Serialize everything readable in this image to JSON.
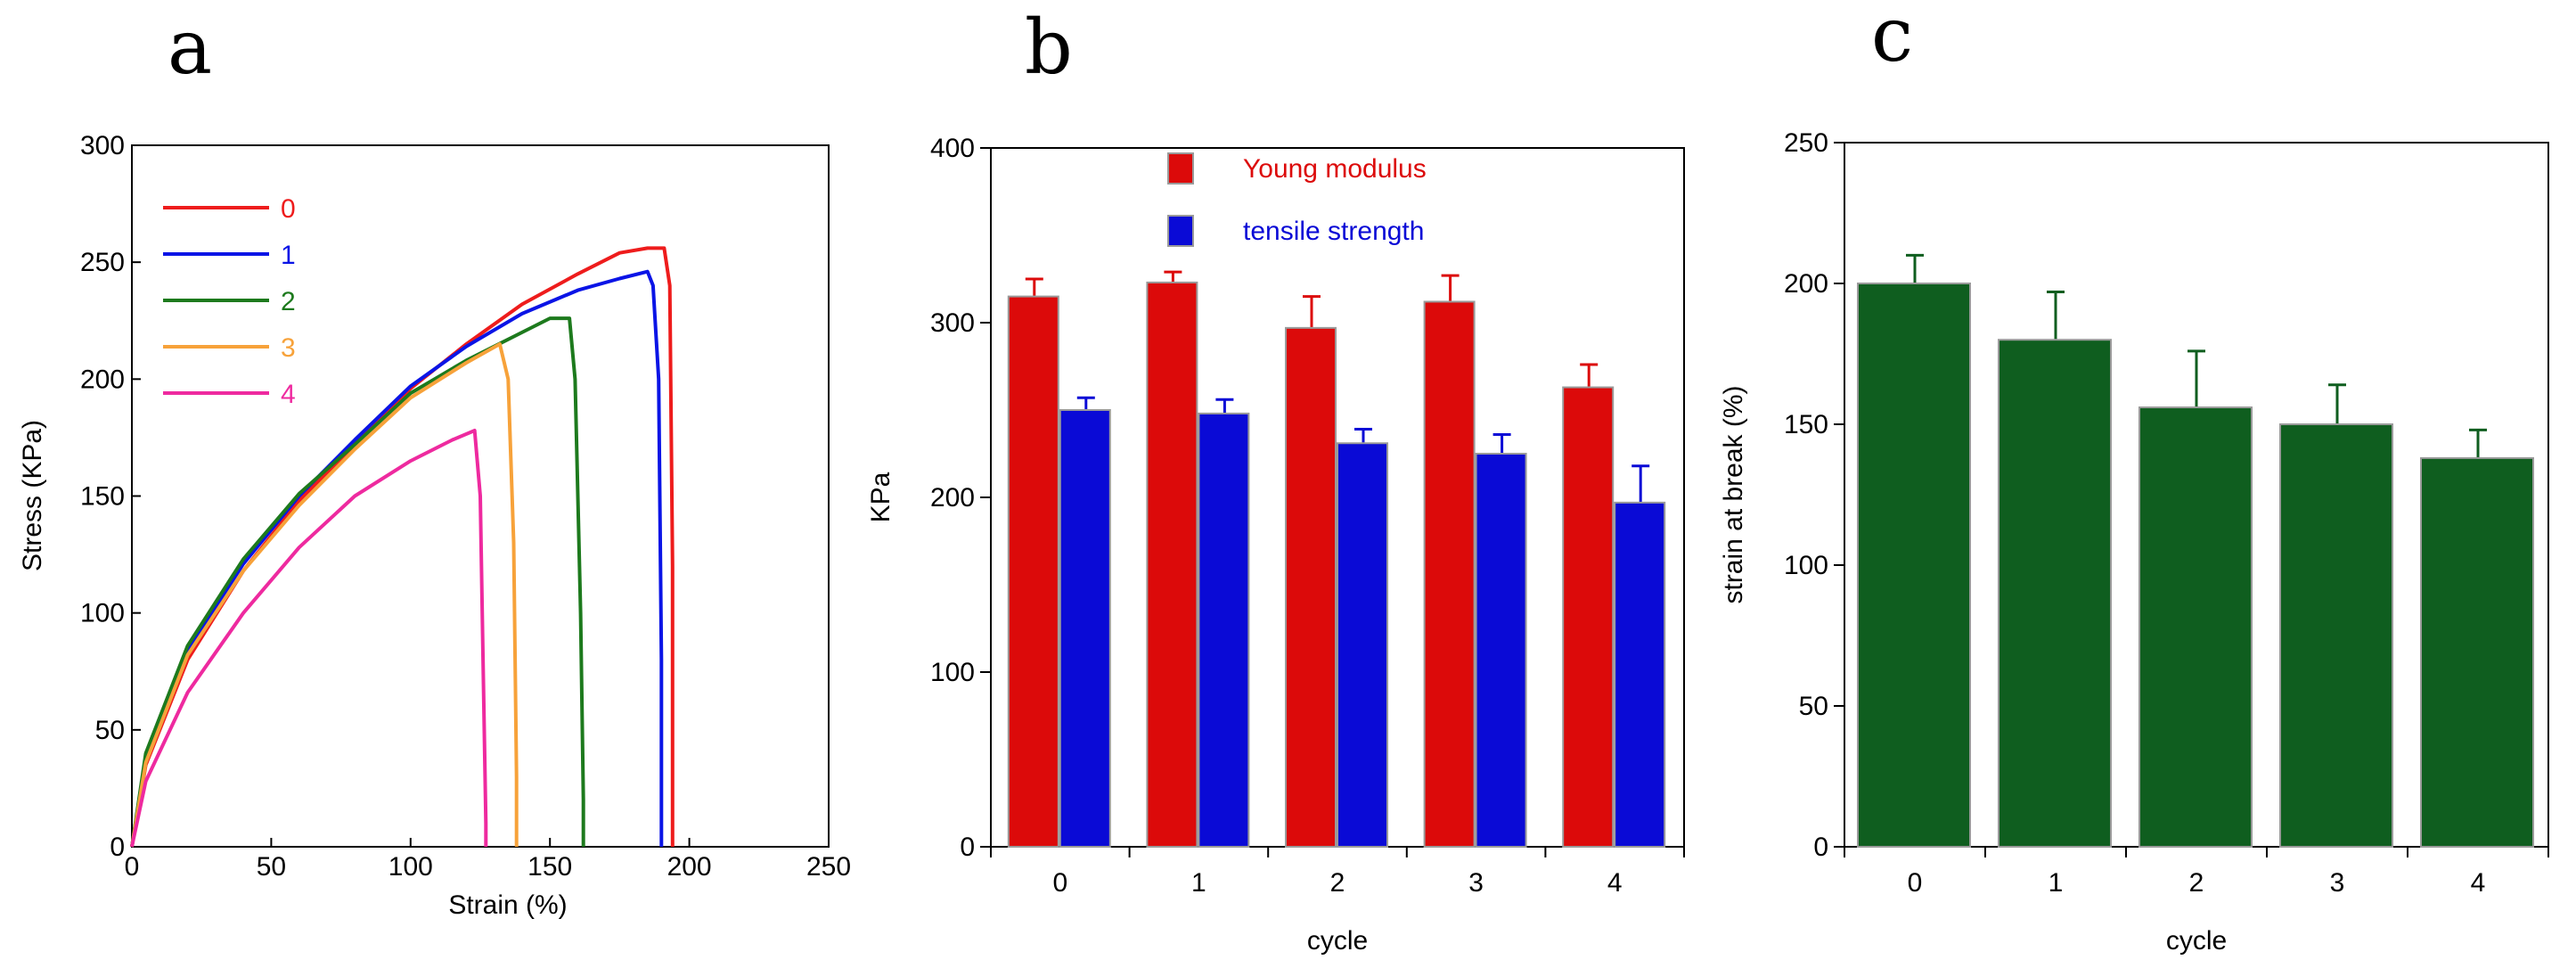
{
  "panels": [
    "a",
    "b",
    "c"
  ],
  "chart_data": [
    {
      "type": "line",
      "xlabel": "Strain (%)",
      "ylabel": "Stress (KPa)",
      "xlim": [
        0,
        250
      ],
      "ylim": [
        0,
        300
      ],
      "xticks": [
        "0",
        "50",
        "100",
        "150",
        "200",
        "250"
      ],
      "yticks": [
        "0",
        "50",
        "100",
        "150",
        "200",
        "250",
        "300"
      ],
      "legend_position": "top-left",
      "series": [
        {
          "name": "0",
          "color": "#ee1c1c",
          "x": [
            0,
            5,
            20,
            40,
            60,
            80,
            100,
            120,
            140,
            160,
            175,
            185,
            191,
            193,
            194,
            194
          ],
          "y": [
            0,
            35,
            80,
            118,
            148,
            172,
            196,
            215,
            232,
            245,
            254,
            256,
            256,
            240,
            120,
            0
          ]
        },
        {
          "name": "1",
          "color": "#0a14e6",
          "x": [
            0,
            5,
            20,
            40,
            60,
            80,
            100,
            120,
            140,
            160,
            175,
            185,
            187,
            189,
            190,
            190
          ],
          "y": [
            0,
            38,
            84,
            121,
            150,
            174,
            197,
            214,
            228,
            238,
            243,
            246,
            240,
            200,
            80,
            0
          ]
        },
        {
          "name": "2",
          "color": "#1d7a1d",
          "x": [
            0,
            5,
            20,
            40,
            60,
            80,
            100,
            120,
            140,
            150,
            157,
            159,
            161,
            162,
            162
          ],
          "y": [
            0,
            40,
            86,
            123,
            151,
            172,
            194,
            208,
            220,
            226,
            226,
            200,
            100,
            20,
            0
          ]
        },
        {
          "name": "3",
          "color": "#f7a23a",
          "x": [
            0,
            5,
            20,
            40,
            60,
            80,
            100,
            120,
            132,
            135,
            137,
            138,
            138
          ],
          "y": [
            0,
            36,
            82,
            118,
            146,
            170,
            192,
            207,
            215,
            200,
            130,
            30,
            0
          ]
        },
        {
          "name": "4",
          "color": "#ee2a9f",
          "x": [
            0,
            5,
            20,
            40,
            60,
            80,
            100,
            115,
            123,
            125,
            126,
            127,
            127
          ],
          "y": [
            0,
            28,
            66,
            100,
            128,
            150,
            165,
            174,
            178,
            150,
            80,
            10,
            0
          ]
        }
      ]
    },
    {
      "type": "bar",
      "xlabel": "cycle",
      "ylabel": "KPa",
      "ylim": [
        0,
        400
      ],
      "yticks": [
        "0",
        "100",
        "200",
        "300",
        "400"
      ],
      "categories": [
        "0",
        "1",
        "2",
        "3",
        "4"
      ],
      "legend_position": "top-center",
      "series": [
        {
          "name": "Young modulus",
          "color": "#dc0a0a",
          "values": [
            315,
            323,
            297,
            312,
            263
          ],
          "errors": [
            10,
            6,
            18,
            15,
            13
          ]
        },
        {
          "name": "tensile strength",
          "color": "#0a0ad6",
          "values": [
            250,
            248,
            231,
            225,
            197
          ],
          "errors": [
            7,
            8,
            8,
            11,
            21
          ]
        }
      ]
    },
    {
      "type": "bar",
      "xlabel": "cycle",
      "ylabel": "strain at break (%)",
      "ylim": [
        0,
        250
      ],
      "yticks": [
        "0",
        "50",
        "100",
        "150",
        "200",
        "250"
      ],
      "categories": [
        "0",
        "1",
        "2",
        "3",
        "4"
      ],
      "series": [
        {
          "name": "strain at break",
          "color": "#0f5e1f",
          "values": [
            200,
            180,
            156,
            150,
            138
          ],
          "errors": [
            10,
            17,
            20,
            14,
            10
          ]
        }
      ]
    }
  ]
}
